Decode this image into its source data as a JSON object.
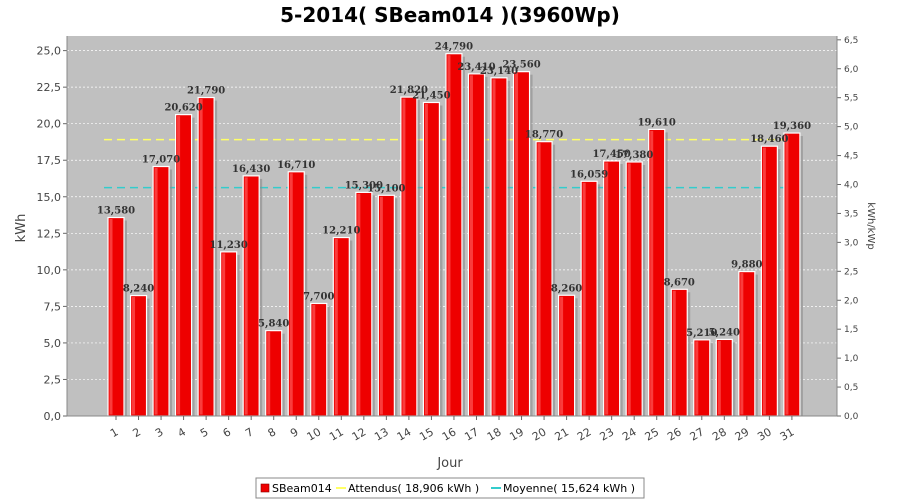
{
  "chart_data": {
    "type": "bar",
    "title": "5-2014( SBeam014 )(3960Wp)",
    "xlabel": "Jour",
    "ylabel": "kWh",
    "ylabel_right": "kWh/kWp",
    "categories": [
      "1",
      "2",
      "3",
      "4",
      "5",
      "6",
      "7",
      "8",
      "9",
      "10",
      "11",
      "12",
      "13",
      "14",
      "15",
      "16",
      "17",
      "18",
      "19",
      "20",
      "21",
      "22",
      "23",
      "24",
      "25",
      "26",
      "27",
      "28",
      "29",
      "30",
      "31"
    ],
    "series": [
      {
        "name": "SBeam014",
        "color": "#ee0000",
        "values": [
          13.58,
          8.24,
          17.07,
          20.62,
          21.79,
          11.23,
          16.43,
          5.84,
          16.71,
          7.7,
          12.21,
          15.3,
          15.1,
          21.82,
          21.45,
          24.79,
          23.41,
          23.14,
          23.56,
          18.77,
          8.26,
          16.059,
          17.45,
          17.38,
          19.61,
          8.67,
          5.21,
          5.24,
          9.88,
          18.46,
          19.36
        ],
        "labels": [
          "13,580",
          "8,240",
          "17,070",
          "20,620",
          "21,790",
          "11,230",
          "16,430",
          "5,840",
          "16,710",
          "7,700",
          "12,210",
          "15,300",
          "15,100",
          "21,820",
          "21,450",
          "24,790",
          "23,410",
          "23,140",
          "23,560",
          "18,770",
          "8,260",
          "16,059",
          "17,450",
          "17,380",
          "19,610",
          "8,670",
          "5,210",
          "5,240",
          "9,880",
          "18,460",
          "19,360"
        ]
      }
    ],
    "reference_lines": [
      {
        "name": "Attendus( 18,906 kWh )",
        "value": 18.906,
        "color": "#ffff66"
      },
      {
        "name": "Moyenne( 15,624 kWh )",
        "value": 15.624,
        "color": "#33cccc"
      }
    ],
    "ylim": [
      0,
      26
    ],
    "yticks": [
      "0,0",
      "2,5",
      "5,0",
      "7,5",
      "10,0",
      "12,5",
      "15,0",
      "17,5",
      "20,0",
      "22,5",
      "25,0"
    ],
    "ylim_right": [
      0,
      6.566
    ],
    "yticks_right": [
      "0,0",
      "0,5",
      "1,0",
      "1,5",
      "2,0",
      "2,5",
      "3,0",
      "3,5",
      "4,0",
      "4,5",
      "5,0",
      "5,5",
      "6,0",
      "6,5"
    ],
    "grid": true,
    "legend": "bottom"
  }
}
